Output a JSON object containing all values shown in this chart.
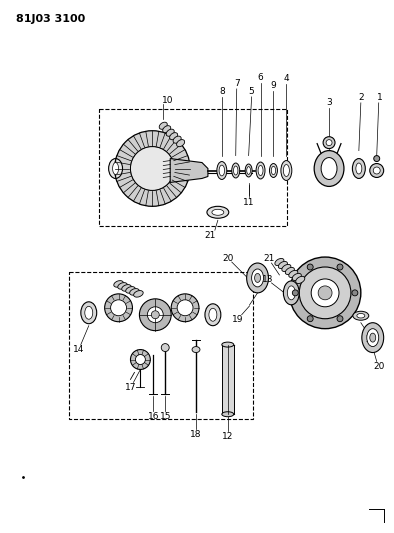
{
  "title": "81J03 3100",
  "bg_color": "#ffffff",
  "line_color": "#000000",
  "title_fontsize": 8,
  "label_fontsize": 6.5,
  "fig_width": 3.94,
  "fig_height": 5.33,
  "dpi": 100
}
